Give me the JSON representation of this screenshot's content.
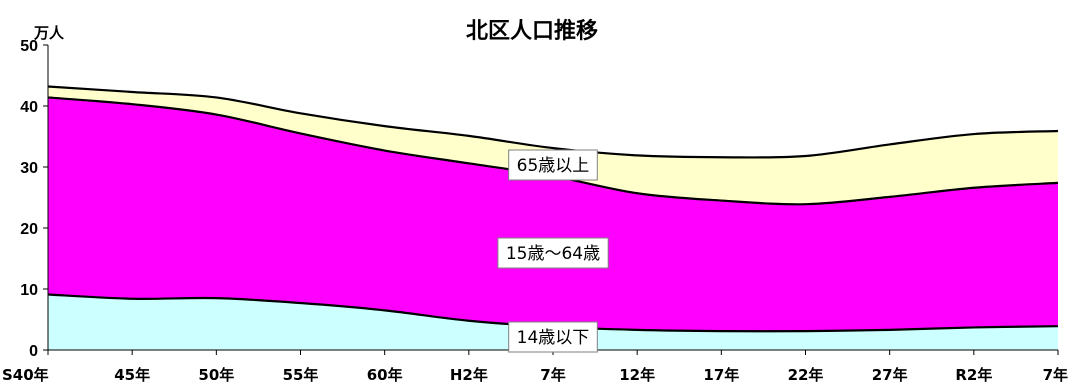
{
  "chart_data": {
    "type": "area",
    "stacked": true,
    "title": "北区人口推移",
    "ylabel": "万人",
    "xlabel": "",
    "ylim": [
      0,
      50
    ],
    "yticks": [
      0,
      10,
      20,
      30,
      40,
      50
    ],
    "grid": false,
    "categories": [
      "S40年",
      "45年",
      "50年",
      "55年",
      "60年",
      "H2年",
      "7年",
      "12年",
      "17年",
      "22年",
      "27年",
      "R2年",
      "7年"
    ],
    "series": [
      {
        "name": "14歳以下",
        "color": "#ccffff",
        "values": [
          9.1,
          8.4,
          8.5,
          7.7,
          6.5,
          4.8,
          3.8,
          3.3,
          3.1,
          3.1,
          3.3,
          3.7,
          3.9
        ]
      },
      {
        "name": "15歳～64歳",
        "color": "#ff00ff",
        "values": [
          32.3,
          31.9,
          30.1,
          27.8,
          26.2,
          25.8,
          24.7,
          22.4,
          21.4,
          20.8,
          21.8,
          22.9,
          23.5
        ]
      },
      {
        "name": "65歳以上",
        "color": "#ffffcc",
        "values": [
          1.8,
          2.0,
          2.8,
          3.3,
          4.0,
          4.5,
          4.6,
          6.2,
          7.1,
          7.9,
          8.6,
          8.8,
          8.5
        ]
      }
    ]
  }
}
